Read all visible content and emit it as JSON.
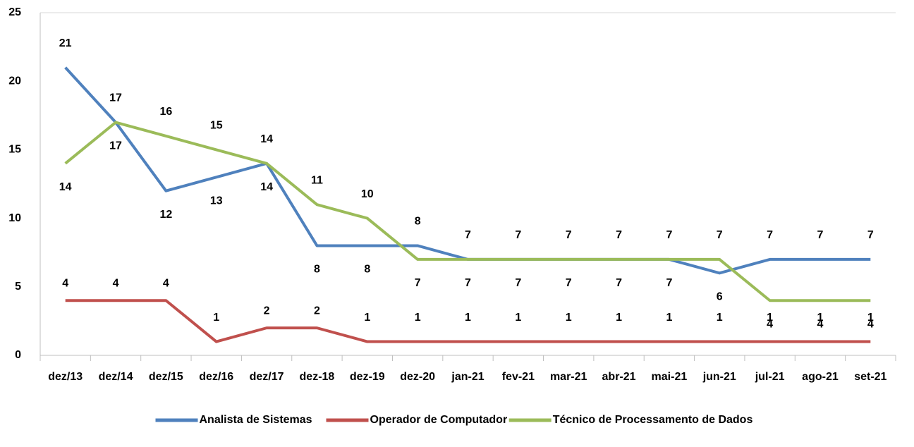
{
  "chart_data": {
    "type": "line",
    "categories": [
      "dez/13",
      "dez/14",
      "dez/15",
      "dez/16",
      "dez/17",
      "dez-18",
      "dez-19",
      "dez-20",
      "jan-21",
      "fev-21",
      "mar-21",
      "abr-21",
      "mai-21",
      "jun-21",
      "jul-21",
      "ago-21",
      "set-21"
    ],
    "series": [
      {
        "name": "Analista de Sistemas",
        "color": "#4f81bd",
        "values": [
          21,
          17,
          12,
          13,
          14,
          8,
          8,
          8,
          7,
          7,
          7,
          7,
          7,
          6,
          7,
          7,
          7
        ]
      },
      {
        "name": "Operador de Computador",
        "color": "#c0504d",
        "values": [
          4,
          4,
          4,
          1,
          2,
          2,
          1,
          1,
          1,
          1,
          1,
          1,
          1,
          1,
          1,
          1,
          1
        ]
      },
      {
        "name": "Técnico de Processamento de Dados",
        "color": "#9bbb59",
        "values": [
          14,
          17,
          16,
          15,
          14,
          11,
          10,
          7,
          7,
          7,
          7,
          7,
          7,
          7,
          4,
          4,
          4
        ]
      }
    ],
    "ylim": [
      0,
      25
    ],
    "yticks": [
      0,
      5,
      10,
      15,
      20,
      25
    ],
    "grid": false,
    "legend": "bottom"
  }
}
